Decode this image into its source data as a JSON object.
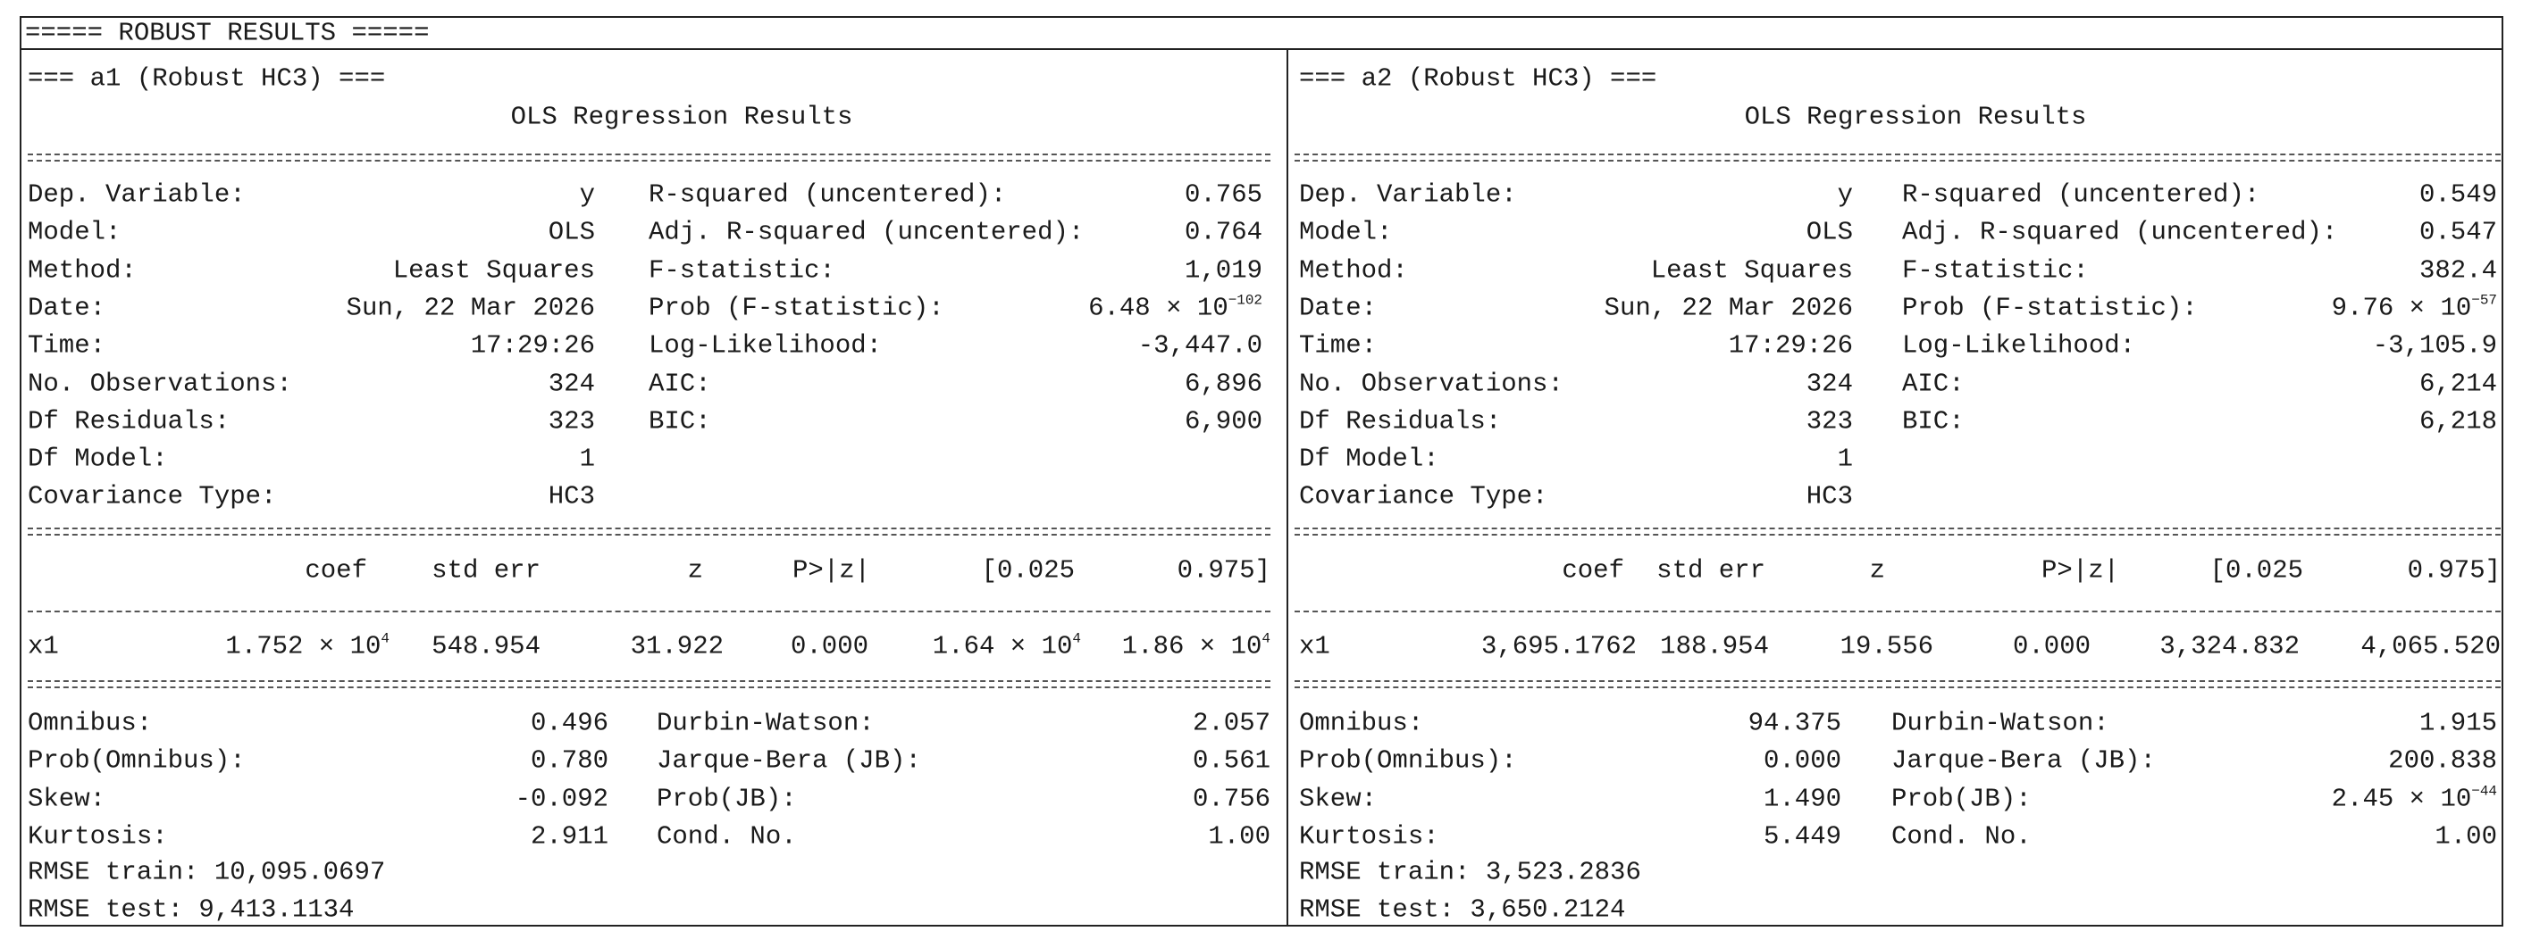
{
  "header": "===== ROBUST RESULTS =====",
  "panels": [
    {
      "title": "=== a1 (Robust HC3) ===",
      "subtitle": "OLS Regression Results",
      "stats": [
        [
          "Dep. Variable:",
          "y",
          "R-squared (uncentered):",
          "0.765"
        ],
        [
          "Model:",
          "OLS",
          "Adj. R-squared (uncentered):",
          "0.764"
        ],
        [
          "Method:",
          "Least Squares",
          "F-statistic:",
          "1,019"
        ],
        [
          "Date:",
          "Sun, 22 Mar 2026",
          "Prob (F-statistic):",
          {
            "base": "6.48 × 10",
            "exp": "−102"
          }
        ],
        [
          "Time:",
          "17:29:26",
          "Log-Likelihood:",
          "-3,447.0"
        ],
        [
          "No. Observations:",
          "324",
          "AIC:",
          "6,896"
        ],
        [
          "Df Residuals:",
          "323",
          "BIC:",
          "6,900"
        ],
        [
          "Df Model:",
          "1"
        ],
        [
          "Covariance Type:",
          "HC3"
        ]
      ],
      "coef_header": [
        "coef",
        "std err",
        "z",
        "P>|z|",
        "[0.025",
        "0.975]"
      ],
      "coef_rows": [
        [
          "x1",
          {
            "base": "1.752 × 10",
            "exp": "4"
          },
          "548.954",
          "31.922",
          "0.000",
          {
            "base": "1.64 × 10",
            "exp": "4"
          },
          {
            "base": "1.86 × 10",
            "exp": "4"
          }
        ]
      ],
      "diagnostics": [
        [
          "Omnibus:",
          "0.496",
          "Durbin-Watson:",
          "2.057"
        ],
        [
          "Prob(Omnibus):",
          "0.780",
          "Jarque-Bera (JB):",
          "0.561"
        ],
        [
          "Skew:",
          "-0.092",
          "Prob(JB):",
          "0.756"
        ],
        [
          "Kurtosis:",
          "2.911",
          "Cond. No.",
          "1.00"
        ]
      ],
      "rmse": [
        "RMSE train: 10,095.0697",
        "RMSE test: 9,413.1134"
      ]
    },
    {
      "title": "=== a2 (Robust HC3) ===",
      "subtitle": "OLS Regression Results",
      "stats": [
        [
          "Dep. Variable:",
          "y",
          "R-squared (uncentered):",
          "0.549"
        ],
        [
          "Model:",
          "OLS",
          "Adj. R-squared (uncentered):",
          "0.547"
        ],
        [
          "Method:",
          "Least Squares",
          "F-statistic:",
          "382.4"
        ],
        [
          "Date:",
          "Sun, 22 Mar 2026",
          "Prob (F-statistic):",
          {
            "base": "9.76 × 10",
            "exp": "−57"
          }
        ],
        [
          "Time:",
          "17:29:26",
          "Log-Likelihood:",
          "-3,105.9"
        ],
        [
          "No. Observations:",
          "324",
          "AIC:",
          "6,214"
        ],
        [
          "Df Residuals:",
          "323",
          "BIC:",
          "6,218"
        ],
        [
          "Df Model:",
          "1"
        ],
        [
          "Covariance Type:",
          "HC3"
        ]
      ],
      "coef_header": [
        "coef",
        "std err",
        "z",
        "P>|z|",
        "[0.025",
        "0.975]"
      ],
      "coef_rows": [
        [
          "x1",
          "3,695.1762",
          "188.954",
          "19.556",
          "0.000",
          "3,324.832",
          "4,065.520"
        ]
      ],
      "diagnostics": [
        [
          "Omnibus:",
          "94.375",
          "Durbin-Watson:",
          "1.915"
        ],
        [
          "Prob(Omnibus):",
          "0.000",
          "Jarque-Bera (JB):",
          "200.838"
        ],
        [
          "Skew:",
          "1.490",
          "Prob(JB):",
          "2.45 × 10",
          "−44"
        ],
        [
          "Kurtosis:",
          "5.449",
          "Cond. No.",
          "1.00"
        ]
      ],
      "rmse": [
        "RMSE train: 3,523.2836",
        "RMSE test: 3,650.2124"
      ]
    }
  ]
}
